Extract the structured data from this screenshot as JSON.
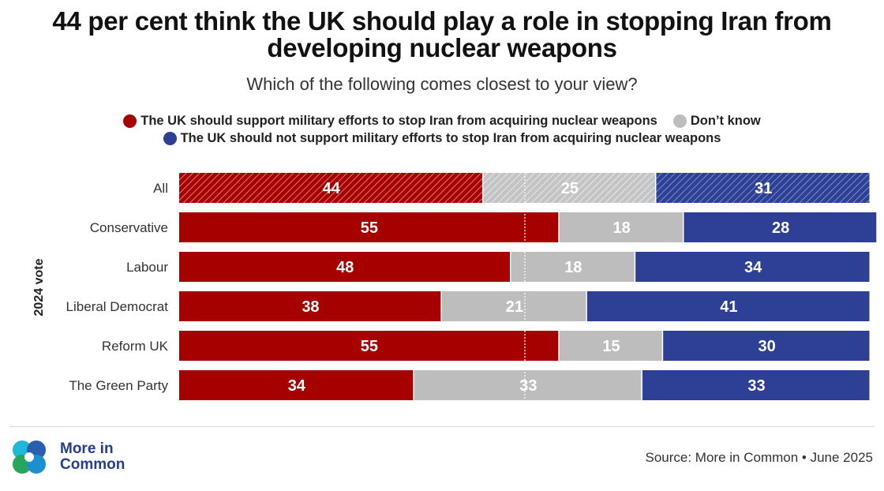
{
  "title_line1": "44 per cent think the UK should play a role in stopping Iran from",
  "title_line2": "developing nuclear weapons",
  "subtitle": "Which of the following comes closest to your view?",
  "legend": {
    "support": "The UK should support military efforts to stop Iran from acquiring nuclear weapons",
    "dont_know": "Don’t know",
    "not_support": "The UK should not support military efforts to stop Iran from acquiring nuclear weapons"
  },
  "colors": {
    "support": "#a60000",
    "dont_know": "#bdbdbd",
    "not_support": "#2e4096",
    "label_text": "#ffffff"
  },
  "chart_data": {
    "type": "bar",
    "orientation": "horizontal",
    "stacked": true,
    "ylabel": "2024 vote",
    "categories": [
      "All",
      "Conservative",
      "Labour",
      "Liberal Democrat",
      "Reform UK",
      "The Green Party"
    ],
    "series": [
      {
        "name": "The UK should support military efforts to stop Iran from acquiring nuclear weapons",
        "values": [
          44,
          55,
          48,
          38,
          55,
          34
        ]
      },
      {
        "name": "Don’t know",
        "values": [
          25,
          18,
          18,
          21,
          15,
          33
        ]
      },
      {
        "name": "The UK should not support military efforts to stop Iran from acquiring nuclear weapons",
        "values": [
          31,
          28,
          34,
          41,
          30,
          33
        ]
      }
    ],
    "hatched_categories": [
      "All"
    ],
    "reference_line": 50,
    "xlim": [
      0,
      100
    ]
  },
  "logo": {
    "line1": "More in",
    "line2": "Common"
  },
  "source": "Source: More in Common • June 2025"
}
